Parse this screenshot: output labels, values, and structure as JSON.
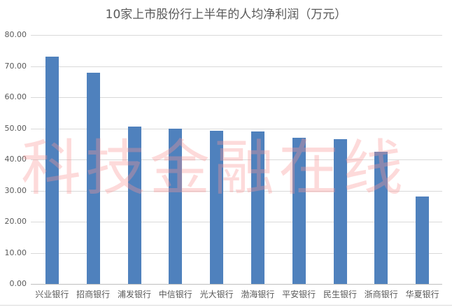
{
  "chart_data": {
    "type": "bar",
    "title": "10家上市股份行上半年的人均净利润（万元）",
    "categories": [
      "兴业银行",
      "招商银行",
      "浦发银行",
      "中信银行",
      "光大银行",
      "渤海银行",
      "平安银行",
      "民生银行",
      "浙商银行",
      "华夏银行"
    ],
    "values": [
      73.0,
      67.9,
      50.6,
      49.9,
      49.2,
      49.0,
      47.0,
      46.5,
      42.5,
      28.1
    ],
    "xlabel": "",
    "ylabel": "",
    "ylim": [
      0,
      80
    ],
    "yticks": [
      "0.00",
      "10.00",
      "20.00",
      "30.00",
      "40.00",
      "50.00",
      "60.00",
      "70.00",
      "80.00"
    ],
    "grid": true,
    "legend": null,
    "bar_color": "#4f81bd"
  },
  "watermark": "科技金融在线"
}
